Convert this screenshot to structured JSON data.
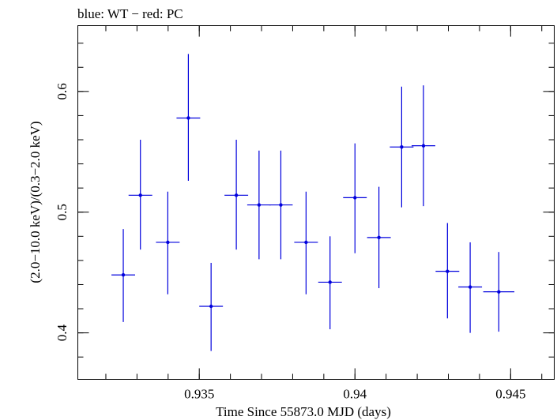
{
  "chart_data": {
    "type": "scatter",
    "title": "blue: WT − red: PC",
    "xlabel": "Time Since 55873.0 MJD (days)",
    "ylabel": "(2.0−10.0 keV)/(0.3−2.0 keV)",
    "xlim": [
      0.9311,
      0.9464
    ],
    "ylim": [
      0.3615,
      0.6545
    ],
    "x_ticks": [
      {
        "value": 0.935,
        "label": "0.935"
      },
      {
        "value": 0.94,
        "label": "0.94"
      },
      {
        "value": 0.945,
        "label": "0.945"
      }
    ],
    "x_minor_step": 0.001,
    "y_ticks": [
      {
        "value": 0.4,
        "label": "0.4"
      },
      {
        "value": 0.5,
        "label": "0.5"
      },
      {
        "value": 0.6,
        "label": "0.6"
      }
    ],
    "y_minor_step": 0.02,
    "grid": false,
    "series": [
      {
        "name": "WT",
        "color": "#0000dd",
        "points": [
          {
            "x": 0.93256,
            "xerr": 0.00038,
            "y": 0.448,
            "ylo": 0.409,
            "yhi": 0.486
          },
          {
            "x": 0.93311,
            "xerr": 0.00038,
            "y": 0.514,
            "ylo": 0.469,
            "yhi": 0.56
          },
          {
            "x": 0.93399,
            "xerr": 0.00038,
            "y": 0.475,
            "ylo": 0.432,
            "yhi": 0.517
          },
          {
            "x": 0.93465,
            "xerr": 0.00038,
            "y": 0.578,
            "ylo": 0.526,
            "yhi": 0.631
          },
          {
            "x": 0.93538,
            "xerr": 0.00038,
            "y": 0.422,
            "ylo": 0.385,
            "yhi": 0.458
          },
          {
            "x": 0.93619,
            "xerr": 0.00038,
            "y": 0.514,
            "ylo": 0.469,
            "yhi": 0.56
          },
          {
            "x": 0.93692,
            "xerr": 0.00038,
            "y": 0.506,
            "ylo": 0.461,
            "yhi": 0.551
          },
          {
            "x": 0.93762,
            "xerr": 0.00038,
            "y": 0.506,
            "ylo": 0.461,
            "yhi": 0.551
          },
          {
            "x": 0.93843,
            "xerr": 0.00038,
            "y": 0.475,
            "ylo": 0.432,
            "yhi": 0.517
          },
          {
            "x": 0.9392,
            "xerr": 0.00038,
            "y": 0.442,
            "ylo": 0.403,
            "yhi": 0.48
          },
          {
            "x": 0.94,
            "xerr": 0.00038,
            "y": 0.512,
            "ylo": 0.466,
            "yhi": 0.557
          },
          {
            "x": 0.94077,
            "xerr": 0.00038,
            "y": 0.479,
            "ylo": 0.437,
            "yhi": 0.521
          },
          {
            "x": 0.9415,
            "xerr": 0.00038,
            "y": 0.554,
            "ylo": 0.504,
            "yhi": 0.604
          },
          {
            "x": 0.9422,
            "xerr": 0.00038,
            "y": 0.555,
            "ylo": 0.505,
            "yhi": 0.605
          },
          {
            "x": 0.94297,
            "xerr": 0.00038,
            "y": 0.451,
            "ylo": 0.412,
            "yhi": 0.491
          },
          {
            "x": 0.9437,
            "xerr": 0.00038,
            "y": 0.438,
            "ylo": 0.4,
            "yhi": 0.475
          },
          {
            "x": 0.94462,
            "xerr": 0.0005,
            "y": 0.434,
            "ylo": 0.401,
            "yhi": 0.467
          }
        ]
      }
    ]
  }
}
